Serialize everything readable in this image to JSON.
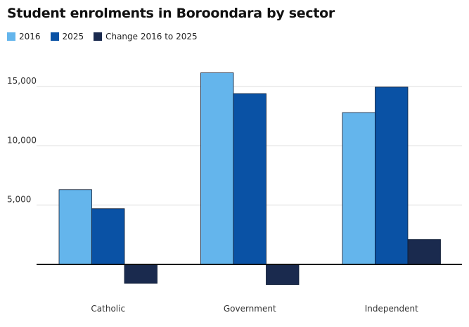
{
  "chart_data": {
    "type": "bar",
    "title": "Student enrolments in Boroondara by sector",
    "categories": [
      "Catholic",
      "Government",
      "Independent"
    ],
    "series": [
      {
        "name": "2016",
        "color": "#64b5ec",
        "values": [
          6300,
          16150,
          12800
        ]
      },
      {
        "name": "2025",
        "color": "#0a52a5",
        "values": [
          4700,
          14400,
          14950
        ]
      },
      {
        "name": "Change 2016 to 2025",
        "color": "#1a2a4e",
        "values": [
          -1600,
          -1700,
          2100
        ]
      }
    ],
    "yticks": [
      5000,
      10000,
      15000
    ],
    "ytick_labels": [
      "5,000",
      "10,000",
      "15,000"
    ],
    "ylim": [
      -1800,
      17500
    ],
    "grid": true,
    "legend_position": "top-left"
  }
}
